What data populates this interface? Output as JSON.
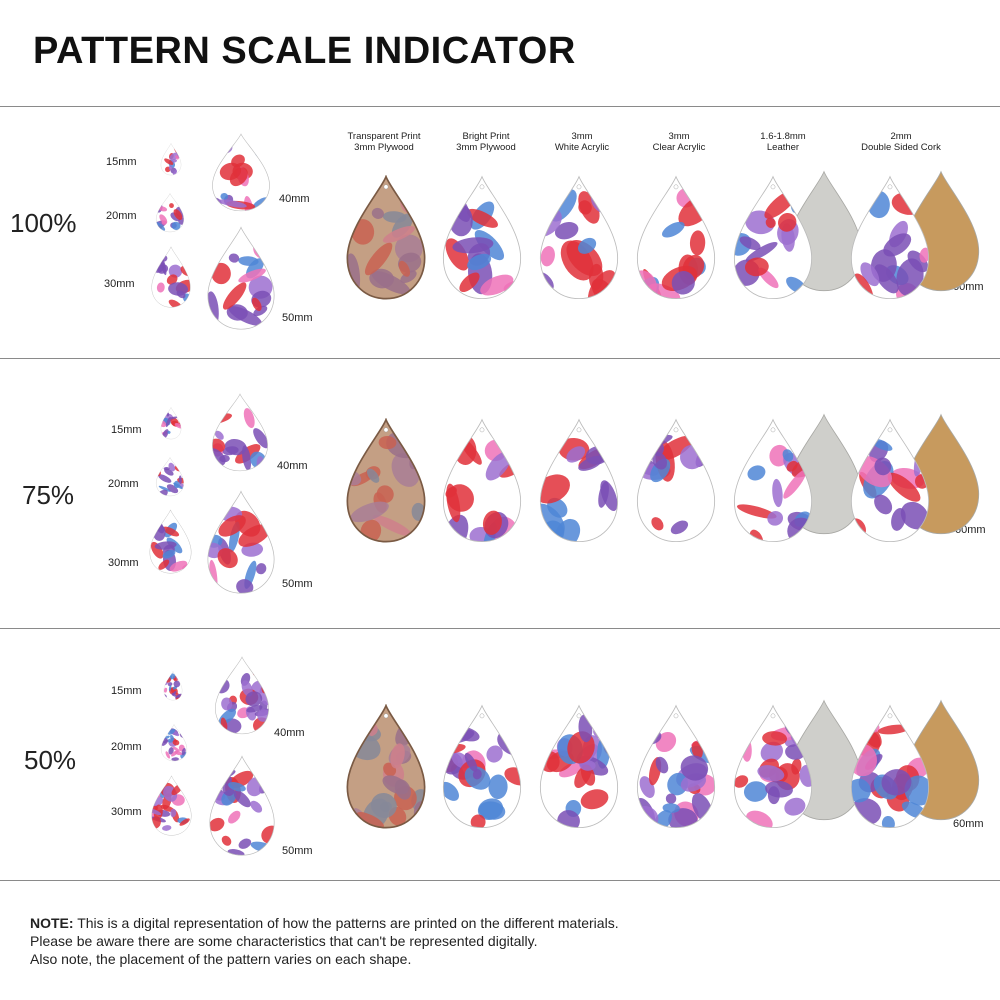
{
  "title": "PATTERN SCALE INDICATOR",
  "materials": [
    {
      "line1": "Transparent Print",
      "line2": "3mm Plywood"
    },
    {
      "line1": "Bright Print",
      "line2": "3mm Plywood"
    },
    {
      "line1": "3mm",
      "line2": "White Acrylic"
    },
    {
      "line1": "3mm",
      "line2": "Clear Acrylic"
    },
    {
      "line1": "1.6-1.8mm",
      "line2": "Leather"
    },
    {
      "line1": "2mm",
      "line2": "Double Sided Cork"
    }
  ],
  "rows": [
    {
      "scale": "100%",
      "s15": "15mm",
      "s20": "20mm",
      "s30": "30mm",
      "s40": "40mm",
      "s50": "50mm",
      "s60": "60mm"
    },
    {
      "scale": "75%",
      "s15": "15mm",
      "s20": "20mm",
      "s30": "30mm",
      "s40": "40mm",
      "s50": "50mm",
      "s60": "60mm"
    },
    {
      "scale": "50%",
      "s15": "15mm",
      "s20": "20mm",
      "s30": "30mm",
      "s40": "40mm",
      "s50": "50mm",
      "s60": "60mm"
    }
  ],
  "note": {
    "label": "NOTE:",
    "line1": "This is a digital representation of how the patterns are printed on the different materials.",
    "line2": "Please be aware there are some characteristics that can't be represented digitally.",
    "line3": "Also note, the placement of the pattern varies on each shape."
  },
  "colors": {
    "purple": "#7a4fb5",
    "violet": "#9c6fd0",
    "red": "#e0303a",
    "pink": "#ee72b8",
    "blue": "#4f86d6",
    "plywood": "#b58a66",
    "leather": "#cfcfcb",
    "cork": "#c79a5e"
  }
}
